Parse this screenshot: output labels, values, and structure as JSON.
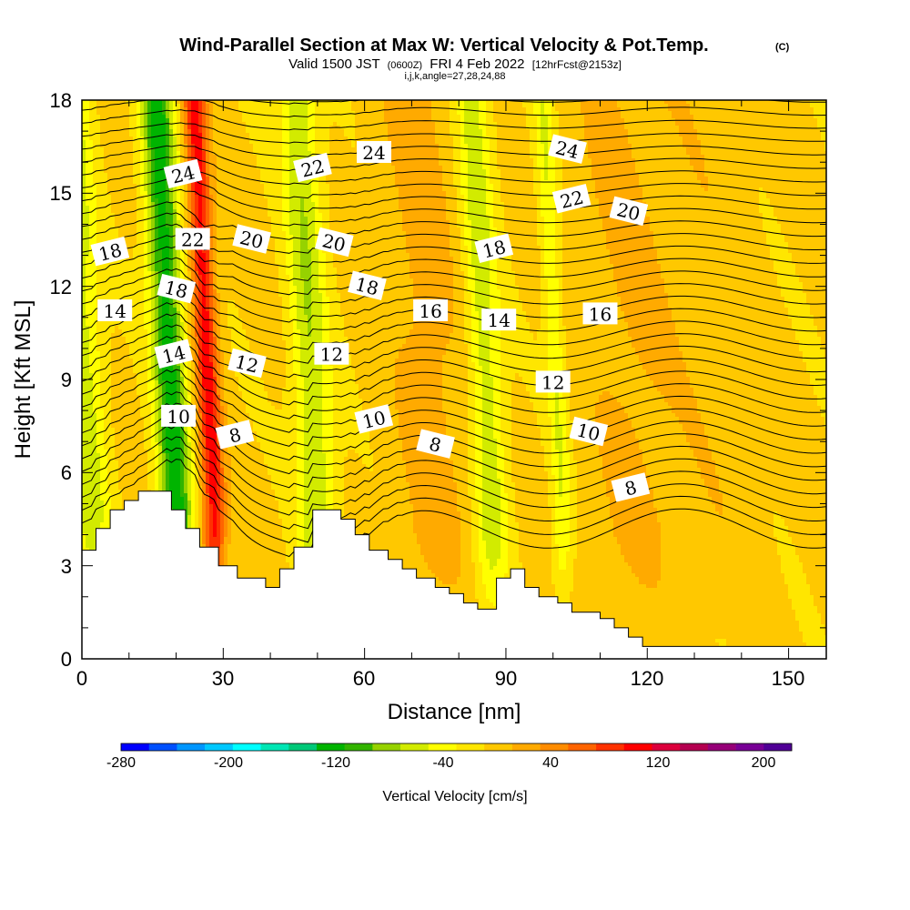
{
  "chart_data": {
    "type": "heatmap",
    "title": "Wind-Parallel Section at Max W: Vertical Velocity & Pot.Temp.",
    "title_mark": "(C)",
    "subtitle_prefix": "Valid 1500 JST",
    "subtitle_utc": "(0600Z)",
    "subtitle_date": "FRI 4 Feb 2022",
    "subtitle_fcst": "[12hrFcst@2153z]",
    "subtitle_indices": "i,j,k,angle=27,28,24,88",
    "xlabel": "Distance [nm]",
    "ylabel": "Height [Kft MSL]",
    "xlim": [
      0,
      158
    ],
    "ylim": [
      0,
      18
    ],
    "xticks": [
      "0",
      "30",
      "60",
      "90",
      "120",
      "150"
    ],
    "yticks": [
      "0",
      "3",
      "6",
      "9",
      "12",
      "15",
      "18"
    ],
    "colorbar": {
      "label": "Vertical Velocity [cm/s]",
      "min": -280,
      "max": 220,
      "tick_labels": [
        "-280",
        "-200",
        "-120",
        "-40",
        "40",
        "120",
        "200"
      ],
      "colors": [
        "#0000ff",
        "#0050ff",
        "#0096ff",
        "#00c8ff",
        "#00ffff",
        "#00e6b4",
        "#00c878",
        "#00b400",
        "#32b400",
        "#96d200",
        "#d2eb00",
        "#ffff00",
        "#ffe600",
        "#ffc800",
        "#ffaa00",
        "#ff8c00",
        "#ff6400",
        "#ff3200",
        "#ff0000",
        "#dc003c",
        "#b40050",
        "#960078",
        "#780096",
        "#500096"
      ]
    },
    "velocity_features": [
      {
        "x": 2,
        "w": 4,
        "amp": -55
      },
      {
        "x": 20,
        "w": 3.5,
        "amp": -120
      },
      {
        "x": 28,
        "w": 2.5,
        "amp": 110
      },
      {
        "x": 50,
        "w": 4,
        "amp": -65
      },
      {
        "x": 87,
        "w": 3.5,
        "amp": -60
      },
      {
        "x": 75,
        "w": 8,
        "amp": 25
      },
      {
        "x": 118,
        "w": 10,
        "amp": 20
      },
      {
        "x": 102,
        "w": 2,
        "amp": -45
      },
      {
        "x": 135,
        "w": 9,
        "amp": 10
      }
    ],
    "theta_contour_labels": [
      {
        "text": "24",
        "x": 21.5,
        "y": 15.6
      },
      {
        "text": "22",
        "x": 23.5,
        "y": 13.5
      },
      {
        "text": "20",
        "x": 36,
        "y": 13.5
      },
      {
        "text": "22",
        "x": 49,
        "y": 15.8
      },
      {
        "text": "24",
        "x": 62,
        "y": 16.3
      },
      {
        "text": "20",
        "x": 53.5,
        "y": 13.4
      },
      {
        "text": "18",
        "x": 6,
        "y": 13.1
      },
      {
        "text": "14",
        "x": 7,
        "y": 11.2
      },
      {
        "text": "18",
        "x": 20,
        "y": 11.9
      },
      {
        "text": "14",
        "x": 19.5,
        "y": 9.8
      },
      {
        "text": "10",
        "x": 20.5,
        "y": 7.8
      },
      {
        "text": "12",
        "x": 35,
        "y": 9.5
      },
      {
        "text": "8",
        "x": 32.5,
        "y": 7.2
      },
      {
        "text": "12",
        "x": 53,
        "y": 9.8
      },
      {
        "text": "18",
        "x": 60.5,
        "y": 12.0
      },
      {
        "text": "10",
        "x": 62,
        "y": 7.7
      },
      {
        "text": "16",
        "x": 74,
        "y": 11.2
      },
      {
        "text": "8",
        "x": 75,
        "y": 6.9
      },
      {
        "text": "18",
        "x": 87.5,
        "y": 13.2
      },
      {
        "text": "14",
        "x": 88.5,
        "y": 10.9
      },
      {
        "text": "24",
        "x": 103,
        "y": 16.4
      },
      {
        "text": "22",
        "x": 104,
        "y": 14.8
      },
      {
        "text": "12",
        "x": 100,
        "y": 8.9
      },
      {
        "text": "10",
        "x": 107.5,
        "y": 7.3
      },
      {
        "text": "8",
        "x": 116.5,
        "y": 5.5
      },
      {
        "text": "16",
        "x": 110,
        "y": 11.1
      },
      {
        "text": "20",
        "x": 116,
        "y": 14.4
      }
    ],
    "terrain_profile": [
      [
        0,
        3.5
      ],
      [
        3,
        3.5
      ],
      [
        3,
        4.2
      ],
      [
        6,
        4.2
      ],
      [
        6,
        4.8
      ],
      [
        9,
        4.8
      ],
      [
        9,
        5.1
      ],
      [
        12,
        5.1
      ],
      [
        12,
        5.4
      ],
      [
        19,
        5.4
      ],
      [
        19,
        4.8
      ],
      [
        22,
        4.8
      ],
      [
        22,
        4.2
      ],
      [
        25,
        4.2
      ],
      [
        25,
        3.6
      ],
      [
        29,
        3.6
      ],
      [
        29,
        3.0
      ],
      [
        33,
        3.0
      ],
      [
        33,
        2.6
      ],
      [
        39,
        2.6
      ],
      [
        39,
        2.3
      ],
      [
        42,
        2.3
      ],
      [
        42,
        2.9
      ],
      [
        45,
        2.9
      ],
      [
        45,
        3.6
      ],
      [
        49,
        3.6
      ],
      [
        49,
        4.8
      ],
      [
        55,
        4.8
      ],
      [
        55,
        4.5
      ],
      [
        58,
        4.5
      ],
      [
        58,
        4.0
      ],
      [
        61,
        4.0
      ],
      [
        61,
        3.5
      ],
      [
        65,
        3.5
      ],
      [
        65,
        3.2
      ],
      [
        68,
        3.2
      ],
      [
        68,
        2.9
      ],
      [
        71,
        2.9
      ],
      [
        71,
        2.6
      ],
      [
        75,
        2.6
      ],
      [
        75,
        2.3
      ],
      [
        78,
        2.3
      ],
      [
        78,
        2.1
      ],
      [
        81,
        2.1
      ],
      [
        81,
        1.8
      ],
      [
        84,
        1.8
      ],
      [
        84,
        1.6
      ],
      [
        88,
        1.6
      ],
      [
        88,
        2.6
      ],
      [
        91,
        2.6
      ],
      [
        91,
        2.9
      ],
      [
        94,
        2.9
      ],
      [
        94,
        2.3
      ],
      [
        97,
        2.3
      ],
      [
        97,
        2.0
      ],
      [
        101,
        2.0
      ],
      [
        101,
        1.8
      ],
      [
        104,
        1.8
      ],
      [
        104,
        1.5
      ],
      [
        110,
        1.5
      ],
      [
        110,
        1.3
      ],
      [
        113,
        1.3
      ],
      [
        113,
        1.0
      ],
      [
        116,
        1.0
      ],
      [
        116,
        0.7
      ],
      [
        119,
        0.7
      ],
      [
        119,
        0.4
      ],
      [
        122,
        0.4
      ],
      [
        158,
        0.4
      ]
    ]
  }
}
